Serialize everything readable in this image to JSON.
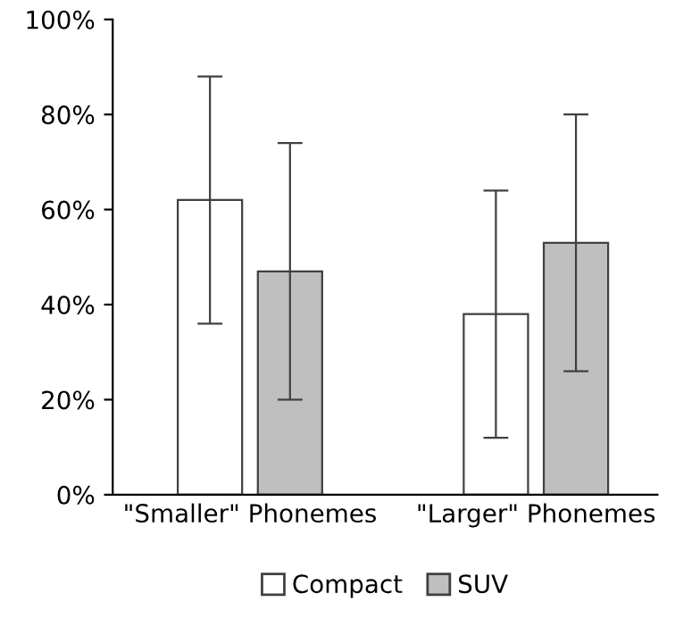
{
  "chart_data": {
    "type": "bar",
    "categories": [
      "\"Smaller\" Phonemes",
      "\"Larger\" Phonemes"
    ],
    "series": [
      {
        "name": "Compact",
        "color": "#ffffff",
        "values": [
          62,
          38
        ],
        "errors": [
          26,
          26
        ]
      },
      {
        "name": "SUV",
        "color": "#bfbfbf",
        "values": [
          47,
          53
        ],
        "errors": [
          27,
          27
        ]
      }
    ],
    "ylim": [
      0,
      100
    ],
    "yticks": [
      {
        "value": 0,
        "label": "0%"
      },
      {
        "value": 20,
        "label": "20%"
      },
      {
        "value": 40,
        "label": "40%"
      },
      {
        "value": 60,
        "label": "60%"
      },
      {
        "value": 80,
        "label": "80%"
      },
      {
        "value": 100,
        "label": "100%"
      }
    ],
    "legend": "bottom",
    "grid": false
  }
}
